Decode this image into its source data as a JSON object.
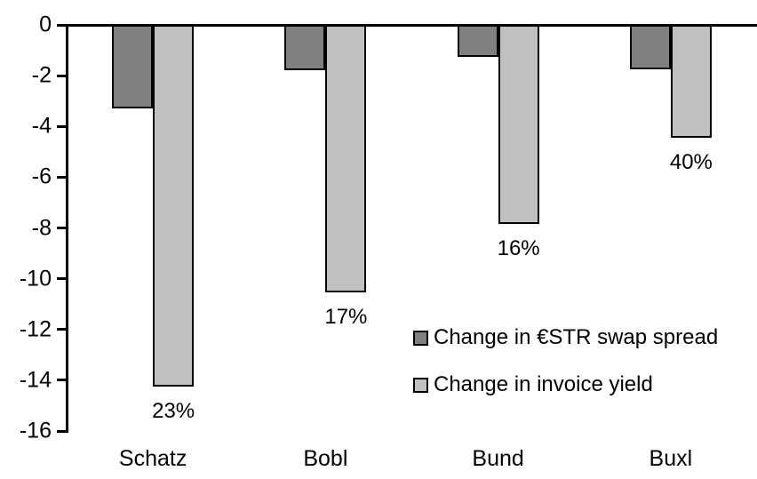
{
  "chart_data": {
    "type": "bar",
    "categories": [
      "Schatz",
      "Bobl",
      "Bund",
      "Buxl"
    ],
    "series": [
      {
        "name": "Change in €STR swap spread",
        "color": "#808080",
        "values": [
          -3.3,
          -1.8,
          -1.25,
          -1.75
        ]
      },
      {
        "name": "Change in invoice yield",
        "color": "#c0c0c0",
        "values": [
          -14.25,
          -10.55,
          -7.85,
          -4.45
        ],
        "bar_labels": [
          "23%",
          "17%",
          "16%",
          "40%"
        ]
      }
    ],
    "title": "",
    "xlabel": "",
    "ylabel": "",
    "ylim": [
      -16,
      0
    ],
    "yticks": [
      "0",
      "-2",
      "-4",
      "-6",
      "-8",
      "-10",
      "-12",
      "-14",
      "-16"
    ],
    "grid": false,
    "legend_position": "inside-center-right",
    "axis_color": "#000000",
    "background_color": "#ffffff"
  }
}
